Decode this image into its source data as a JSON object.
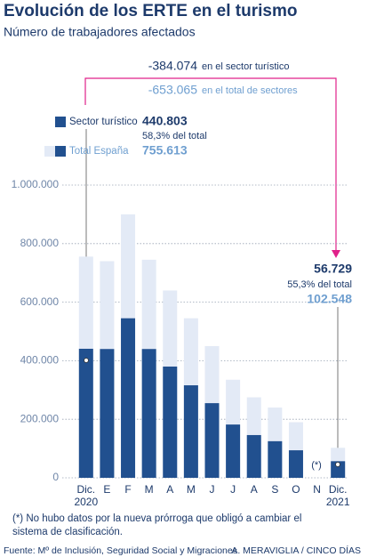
{
  "chart_data": {
    "type": "bar",
    "title": "Evolución de los ERTE en el turismo",
    "subtitle": "Número de trabajadores afectados",
    "categories": [
      "Dic. 2020",
      "E",
      "F",
      "M",
      "A",
      "M",
      "J",
      "J",
      "A",
      "S",
      "O",
      "N",
      "Dic. 2021"
    ],
    "series": [
      {
        "name": "Total España",
        "color": "#e3eaf6",
        "values": [
          755613,
          740000,
          900000,
          745000,
          640000,
          545000,
          450000,
          335000,
          275000,
          240000,
          190000,
          null,
          102548
        ],
        "value_labels": [
          "755.613",
          null,
          null,
          null,
          null,
          null,
          null,
          null,
          null,
          null,
          null,
          null,
          "102.548"
        ]
      },
      {
        "name": "Sector turístico",
        "color": "#21508f",
        "values": [
          440803,
          440000,
          545000,
          440000,
          380000,
          316000,
          255000,
          182000,
          146000,
          125000,
          94000,
          null,
          56729
        ],
        "value_labels": [
          "440.803",
          null,
          null,
          null,
          null,
          null,
          null,
          null,
          null,
          null,
          null,
          null,
          "56.729"
        ]
      }
    ],
    "ylim": [
      0,
      1000000
    ],
    "yticks": [
      0,
      {
        "value": 200000,
        "label": "200.000"
      },
      {
        "value": 400000,
        "label": "400.000"
      },
      {
        "value": 600000,
        "label": "600.000"
      },
      {
        "value": 800000,
        "label": "800.000"
      },
      {
        "value": 1000000,
        "label": "1.000.000"
      }
    ],
    "grid": true,
    "annotations": {
      "change_sector_value": "-384.074",
      "change_sector_text": "en el sector turístico",
      "change_total_value": "-653.065",
      "change_total_text": "en el total de sectores",
      "share_start": "58,3% del total",
      "share_end": "55,3% del total",
      "missing_marker": "(*)",
      "footnote": "(*) No hubo datos por la nueva prórroga que obligó a cambiar el sistema de clasificación."
    },
    "source": "Fuente: Mº de Inclusión, Seguridad Social y Migraciones",
    "credit": "A. MERAVIGLIA / CINCO DÍAS"
  }
}
